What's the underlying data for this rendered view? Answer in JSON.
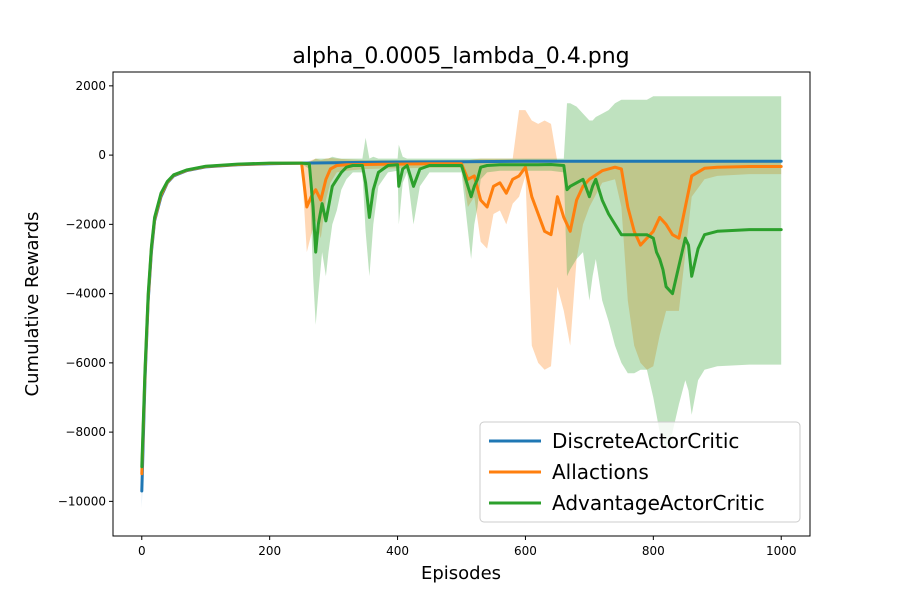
{
  "chart_data": {
    "type": "line",
    "title": "alpha_0.0005_lambda_0.4.png",
    "xlabel": "Episodes",
    "ylabel": "Cumulative Rewards",
    "xlim": [
      -45,
      1045
    ],
    "ylim": [
      -11000,
      2400
    ],
    "xticks": [
      0,
      200,
      400,
      600,
      800,
      1000
    ],
    "xtick_labels": [
      "0",
      "200",
      "400",
      "600",
      "800",
      "1000"
    ],
    "yticks": [
      2000,
      0,
      -2000,
      -4000,
      -6000,
      -8000,
      -10000
    ],
    "ytick_labels": [
      "2000",
      "0",
      "−2000",
      "−4000",
      "−6000",
      "−8000",
      "−10000"
    ],
    "grid": false,
    "legend_position": "lower-right",
    "series": [
      {
        "name": "DiscreteActorCritic",
        "color": "#1f77b4",
        "x": [
          0,
          5,
          10,
          15,
          20,
          30,
          40,
          50,
          70,
          100,
          150,
          200,
          250,
          300,
          400,
          500,
          600,
          700,
          800,
          900,
          1000
        ],
        "y": [
          -9700,
          -6500,
          -4200,
          -2800,
          -1900,
          -1200,
          -800,
          -600,
          -450,
          -340,
          -280,
          -250,
          -230,
          -220,
          -200,
          -190,
          -180,
          -180,
          -180,
          -180,
          -180
        ],
        "band_upper": [
          -9300,
          -6200,
          -4000,
          -2600,
          -1800,
          -1100,
          -750,
          -550,
          -420,
          -320,
          -260,
          -230,
          -210,
          -200,
          -185,
          -175,
          -165,
          -165,
          -165,
          -165,
          -165
        ],
        "band_lower": [
          -10200,
          -6800,
          -4400,
          -3000,
          -2000,
          -1300,
          -850,
          -650,
          -480,
          -360,
          -300,
          -270,
          -250,
          -240,
          -215,
          -205,
          -195,
          -195,
          -195,
          -195,
          -195
        ]
      },
      {
        "name": "Allactions",
        "color": "#ff7f0e",
        "x": [
          0,
          5,
          10,
          15,
          20,
          30,
          40,
          50,
          70,
          100,
          150,
          200,
          250,
          258,
          265,
          272,
          280,
          288,
          295,
          305,
          320,
          350,
          400,
          450,
          500,
          510,
          520,
          530,
          540,
          550,
          560,
          570,
          580,
          590,
          600,
          610,
          620,
          630,
          640,
          650,
          660,
          670,
          680,
          690,
          700,
          720,
          740,
          750,
          760,
          770,
          780,
          790,
          800,
          810,
          820,
          830,
          840,
          860,
          880,
          900,
          950,
          1000
        ],
        "y": [
          -9200,
          -6300,
          -4100,
          -2700,
          -1850,
          -1150,
          -780,
          -580,
          -440,
          -330,
          -270,
          -240,
          -230,
          -1500,
          -1200,
          -1000,
          -1300,
          -700,
          -400,
          -300,
          -280,
          -270,
          -260,
          -250,
          -250,
          -700,
          -600,
          -1300,
          -1500,
          -900,
          -800,
          -1100,
          -700,
          -600,
          -350,
          -1200,
          -1700,
          -2200,
          -2300,
          -1200,
          -1800,
          -2200,
          -1300,
          -900,
          -700,
          -450,
          -350,
          -400,
          -1500,
          -2200,
          -2600,
          -2400,
          -2200,
          -1800,
          -2000,
          -2300,
          -2400,
          -600,
          -380,
          -350,
          -330,
          -330
        ],
        "band_upper": [
          -9000,
          -6100,
          -3950,
          -2600,
          -1750,
          -1100,
          -740,
          -550,
          -410,
          -310,
          -250,
          -220,
          -210,
          -200,
          -150,
          -100,
          -150,
          -100,
          -80,
          -100,
          -120,
          -150,
          -150,
          -150,
          -150,
          -150,
          -120,
          -100,
          -100,
          -100,
          -100,
          -100,
          -100,
          1300,
          1300,
          1000,
          900,
          1000,
          900,
          -200,
          -150,
          -150,
          -150,
          -150,
          -150,
          -150,
          -150,
          -150,
          -150,
          -150,
          -150,
          -150,
          -150,
          -150,
          -150,
          -150,
          -150,
          -200,
          -200,
          -200,
          -200,
          -200
        ],
        "band_lower": [
          -9500,
          -6500,
          -4250,
          -2800,
          -1950,
          -1200,
          -820,
          -610,
          -470,
          -350,
          -290,
          -260,
          -250,
          -2800,
          -2300,
          -1900,
          -2400,
          -1300,
          -800,
          -500,
          -450,
          -400,
          -380,
          -370,
          -370,
          -1500,
          -1200,
          -2500,
          -2700,
          -1700,
          -1600,
          -2000,
          -1400,
          -1200,
          -600,
          -5500,
          -6000,
          -6200,
          -6100,
          -3800,
          -4500,
          -5500,
          -3000,
          -2000,
          -1500,
          -800,
          -700,
          -1500,
          -4200,
          -5500,
          -6000,
          -6200,
          -6100,
          -5200,
          -4500,
          -4500,
          -4500,
          -1200,
          -700,
          -600,
          -550,
          -550
        ]
      },
      {
        "name": "AdvantageActorCritic",
        "color": "#2ca02c",
        "x": [
          0,
          5,
          10,
          15,
          20,
          30,
          40,
          50,
          70,
          100,
          150,
          200,
          250,
          262,
          268,
          272,
          276,
          282,
          288,
          292,
          298,
          305,
          312,
          320,
          330,
          345,
          350,
          356,
          362,
          370,
          385,
          400,
          402,
          408,
          415,
          425,
          435,
          450,
          500,
          515,
          520,
          525,
          530,
          540,
          560,
          600,
          620,
          640,
          660,
          665,
          670,
          680,
          690,
          700,
          705,
          710,
          720,
          730,
          740,
          750,
          760,
          770,
          780,
          790,
          800,
          805,
          810,
          815,
          820,
          830,
          840,
          850,
          855,
          860,
          870,
          880,
          900,
          950,
          1000
        ],
        "y": [
          -9000,
          -6200,
          -4000,
          -2650,
          -1800,
          -1100,
          -760,
          -570,
          -430,
          -320,
          -260,
          -230,
          -230,
          -250,
          -1500,
          -2800,
          -2000,
          -1400,
          -1900,
          -1500,
          -900,
          -700,
          -500,
          -350,
          -300,
          -300,
          -800,
          -1800,
          -1000,
          -500,
          -300,
          -280,
          -900,
          -400,
          -300,
          -900,
          -400,
          -300,
          -300,
          -1200,
          -900,
          -700,
          -350,
          -300,
          -280,
          -280,
          -280,
          -270,
          -300,
          -1000,
          -900,
          -800,
          -700,
          -1200,
          -900,
          -700,
          -1300,
          -1700,
          -2000,
          -2300,
          -2300,
          -2300,
          -2300,
          -2300,
          -2400,
          -2800,
          -3000,
          -3300,
          -3800,
          -4000,
          -3200,
          -2400,
          -2600,
          -3500,
          -2700,
          -2300,
          -2200,
          -2150,
          -2150
        ],
        "band_upper": [
          -8800,
          -6000,
          -3850,
          -2550,
          -1700,
          -1050,
          -720,
          -540,
          -400,
          -300,
          -240,
          -210,
          -210,
          -200,
          -150,
          -100,
          -100,
          -100,
          -100,
          -100,
          -50,
          -80,
          -100,
          -100,
          -100,
          -100,
          500,
          -100,
          -50,
          -100,
          -100,
          -100,
          300,
          -50,
          -100,
          -100,
          -100,
          -100,
          -100,
          -100,
          -100,
          -100,
          -100,
          -100,
          -100,
          -100,
          -100,
          -100,
          -100,
          1500,
          1500,
          1400,
          1200,
          1000,
          1000,
          1100,
          1200,
          1300,
          1500,
          1600,
          1600,
          1600,
          1600,
          1600,
          1700,
          1700,
          1700,
          1700,
          1700,
          1700,
          1700,
          1700,
          1700,
          1700,
          1700,
          1700,
          1700,
          1700,
          1700
        ],
        "band_lower": [
          -9300,
          -6400,
          -4150,
          -2750,
          -1900,
          -1150,
          -800,
          -600,
          -460,
          -340,
          -280,
          -250,
          -250,
          -400,
          -3500,
          -4900,
          -4000,
          -2800,
          -3500,
          -2800,
          -2000,
          -1600,
          -1000,
          -700,
          -500,
          -500,
          -2200,
          -3500,
          -2000,
          -900,
          -500,
          -450,
          -2000,
          -800,
          -500,
          -2000,
          -900,
          -500,
          -500,
          -3000,
          -2000,
          -1500,
          -700,
          -500,
          -450,
          -450,
          -450,
          -450,
          -500,
          -3500,
          -3300,
          -3000,
          -2800,
          -4200,
          -3500,
          -3000,
          -4200,
          -4800,
          -5500,
          -6000,
          -6300,
          -6300,
          -6200,
          -6200,
          -7000,
          -7500,
          -8000,
          -8200,
          -8500,
          -8000,
          -7200,
          -6500,
          -6800,
          -7500,
          -6500,
          -6200,
          -6100,
          -6050,
          -6050
        ]
      }
    ]
  }
}
